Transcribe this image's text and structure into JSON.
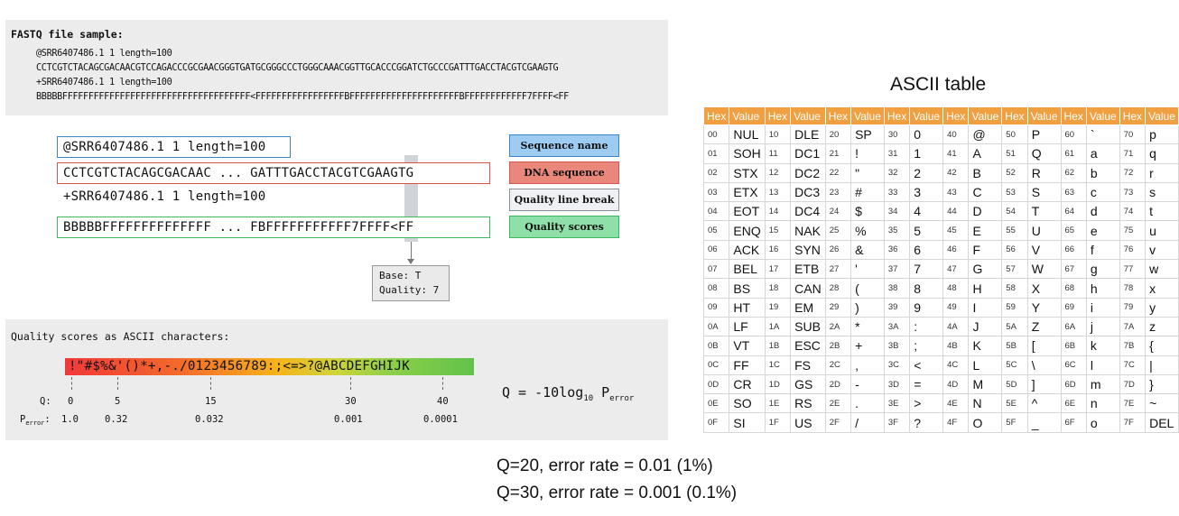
{
  "fastq_panel": {
    "title": "FASTQ file sample:",
    "lines": [
      "@SRR6407486.1 1 length=100",
      "CCTCGTCTACAGCGACAACGTCCAGACCCGCGAACGGGTGATGCGGGCCCTGGGCAAACGGTTGCACCCGGATCTGCCCGATTTGACCTACGTCGAAGTG",
      "+SRR6407486.1 1 length=100",
      "BBBBBFFFFFFFFFFFFFFFFFFFFFFFFFFFFFFFFFFFF<FFFFFFFFFFFFFFFFFBFFFFFFFFFFFFFFFFFFFFFBFFFFFFFFFFFF7FFFF<FF"
    ]
  },
  "breakdown": {
    "sequence_name": "@SRR6407486.1 1 length=100",
    "dna_sequence": "CCTCGTCTACAGCGACAAC ... GATTTGACCTACGTCGAAGTG",
    "quality_line_break": "+SRR6407486.1 1 length=100",
    "quality_scores": "BBBBBFFFFFFFFFFFFFF ... FBFFFFFFFFFFF7FFFF<FF",
    "callout_base": "Base: T",
    "callout_quality": "Quality: 7"
  },
  "legend": {
    "sequence_name": "Sequence name",
    "dna_sequence": "DNA sequence",
    "quality_line_break": "Quality line break",
    "quality_scores": "Quality scores"
  },
  "colors": {
    "sequence_name": "#9ecbf2",
    "sequence_name_border": "#3a86c8",
    "dna_sequence": "#e8877a",
    "dna_sequence_border": "#d9534f",
    "quality_line_break": "#eef0f3",
    "quality_scores": "#8fe0a8",
    "quality_scores_border": "#3cb95c",
    "table_header": "#f0a040"
  },
  "quality_panel": {
    "title": "Quality scores as ASCII characters:",
    "ascii_chars": "!\"#$%&'()*+,-./0123456789:;<=>?@ABCDEFGHIJK",
    "q_label": "Q:",
    "perror_label": "P",
    "perror_sub": "error",
    "perror_colon": ":",
    "ticks": [
      {
        "q": "0",
        "p": "1.0"
      },
      {
        "q": "5",
        "p": "0.32"
      },
      {
        "q": "15",
        "p": "0.032"
      },
      {
        "q": "30",
        "p": "0.001"
      },
      {
        "q": "40",
        "p": "0.0001"
      }
    ],
    "formula_prefix": "Q = -10log",
    "formula_sub": "10",
    "formula_p": " P",
    "formula_p_sub": "error"
  },
  "ascii_table": {
    "title": "ASCII table",
    "header_hex": "Hex",
    "header_value": "Value",
    "rows": [
      [
        [
          "00",
          "NUL"
        ],
        [
          "10",
          "DLE"
        ],
        [
          "20",
          "SP"
        ],
        [
          "30",
          "0"
        ],
        [
          "40",
          "@"
        ],
        [
          "50",
          "P"
        ],
        [
          "60",
          "`"
        ],
        [
          "70",
          "p"
        ]
      ],
      [
        [
          "01",
          "SOH"
        ],
        [
          "11",
          "DC1"
        ],
        [
          "21",
          "!"
        ],
        [
          "31",
          "1"
        ],
        [
          "41",
          "A"
        ],
        [
          "51",
          "Q"
        ],
        [
          "61",
          "a"
        ],
        [
          "71",
          "q"
        ]
      ],
      [
        [
          "02",
          "STX"
        ],
        [
          "12",
          "DC2"
        ],
        [
          "22",
          "\""
        ],
        [
          "32",
          "2"
        ],
        [
          "42",
          "B"
        ],
        [
          "52",
          "R"
        ],
        [
          "62",
          "b"
        ],
        [
          "72",
          "r"
        ]
      ],
      [
        [
          "03",
          "ETX"
        ],
        [
          "13",
          "DC3"
        ],
        [
          "23",
          "#"
        ],
        [
          "33",
          "3"
        ],
        [
          "43",
          "C"
        ],
        [
          "53",
          "S"
        ],
        [
          "63",
          "c"
        ],
        [
          "73",
          "s"
        ]
      ],
      [
        [
          "04",
          "EOT"
        ],
        [
          "14",
          "DC4"
        ],
        [
          "24",
          "$"
        ],
        [
          "34",
          "4"
        ],
        [
          "44",
          "D"
        ],
        [
          "54",
          "T"
        ],
        [
          "64",
          "d"
        ],
        [
          "74",
          "t"
        ]
      ],
      [
        [
          "05",
          "ENQ"
        ],
        [
          "15",
          "NAK"
        ],
        [
          "25",
          "%"
        ],
        [
          "35",
          "5"
        ],
        [
          "45",
          "E"
        ],
        [
          "55",
          "U"
        ],
        [
          "65",
          "e"
        ],
        [
          "75",
          "u"
        ]
      ],
      [
        [
          "06",
          "ACK"
        ],
        [
          "16",
          "SYN"
        ],
        [
          "26",
          "&"
        ],
        [
          "36",
          "6"
        ],
        [
          "46",
          "F"
        ],
        [
          "56",
          "V"
        ],
        [
          "66",
          "f"
        ],
        [
          "76",
          "v"
        ]
      ],
      [
        [
          "07",
          "BEL"
        ],
        [
          "17",
          "ETB"
        ],
        [
          "27",
          "'"
        ],
        [
          "37",
          "7"
        ],
        [
          "47",
          "G"
        ],
        [
          "57",
          "W"
        ],
        [
          "67",
          "g"
        ],
        [
          "77",
          "w"
        ]
      ],
      [
        [
          "08",
          "BS"
        ],
        [
          "18",
          "CAN"
        ],
        [
          "28",
          "("
        ],
        [
          "38",
          "8"
        ],
        [
          "48",
          "H"
        ],
        [
          "58",
          "X"
        ],
        [
          "68",
          "h"
        ],
        [
          "78",
          "x"
        ]
      ],
      [
        [
          "09",
          "HT"
        ],
        [
          "19",
          "EM"
        ],
        [
          "29",
          ")"
        ],
        [
          "39",
          "9"
        ],
        [
          "49",
          "I"
        ],
        [
          "59",
          "Y"
        ],
        [
          "69",
          "i"
        ],
        [
          "79",
          "y"
        ]
      ],
      [
        [
          "0A",
          "LF"
        ],
        [
          "1A",
          "SUB"
        ],
        [
          "2A",
          "*"
        ],
        [
          "3A",
          ":"
        ],
        [
          "4A",
          "J"
        ],
        [
          "5A",
          "Z"
        ],
        [
          "6A",
          "j"
        ],
        [
          "7A",
          "z"
        ]
      ],
      [
        [
          "0B",
          "VT"
        ],
        [
          "1B",
          "ESC"
        ],
        [
          "2B",
          "+"
        ],
        [
          "3B",
          ";"
        ],
        [
          "4B",
          "K"
        ],
        [
          "5B",
          "["
        ],
        [
          "6B",
          "k"
        ],
        [
          "7B",
          "{"
        ]
      ],
      [
        [
          "0C",
          "FF"
        ],
        [
          "1C",
          "FS"
        ],
        [
          "2C",
          ","
        ],
        [
          "3C",
          "<"
        ],
        [
          "4C",
          "L"
        ],
        [
          "5C",
          "\\"
        ],
        [
          "6C",
          "l"
        ],
        [
          "7C",
          "|"
        ]
      ],
      [
        [
          "0D",
          "CR"
        ],
        [
          "1D",
          "GS"
        ],
        [
          "2D",
          "-"
        ],
        [
          "3D",
          "="
        ],
        [
          "4D",
          "M"
        ],
        [
          "5D",
          "]"
        ],
        [
          "6D",
          "m"
        ],
        [
          "7D",
          "}"
        ]
      ],
      [
        [
          "0E",
          "SO"
        ],
        [
          "1E",
          "RS"
        ],
        [
          "2E",
          "."
        ],
        [
          "3E",
          ">"
        ],
        [
          "4E",
          "N"
        ],
        [
          "5E",
          "^"
        ],
        [
          "6E",
          "n"
        ],
        [
          "7E",
          "~"
        ]
      ],
      [
        [
          "0F",
          "SI"
        ],
        [
          "1F",
          "US"
        ],
        [
          "2F",
          "/"
        ],
        [
          "3F",
          "?"
        ],
        [
          "4F",
          "O"
        ],
        [
          "5F",
          "_"
        ],
        [
          "6F",
          "o"
        ],
        [
          "7F",
          "DEL"
        ]
      ]
    ]
  },
  "notes": [
    "Q=20, error rate = 0.01 (1%)",
    "Q=30, error rate = 0.001 (0.1%)"
  ]
}
